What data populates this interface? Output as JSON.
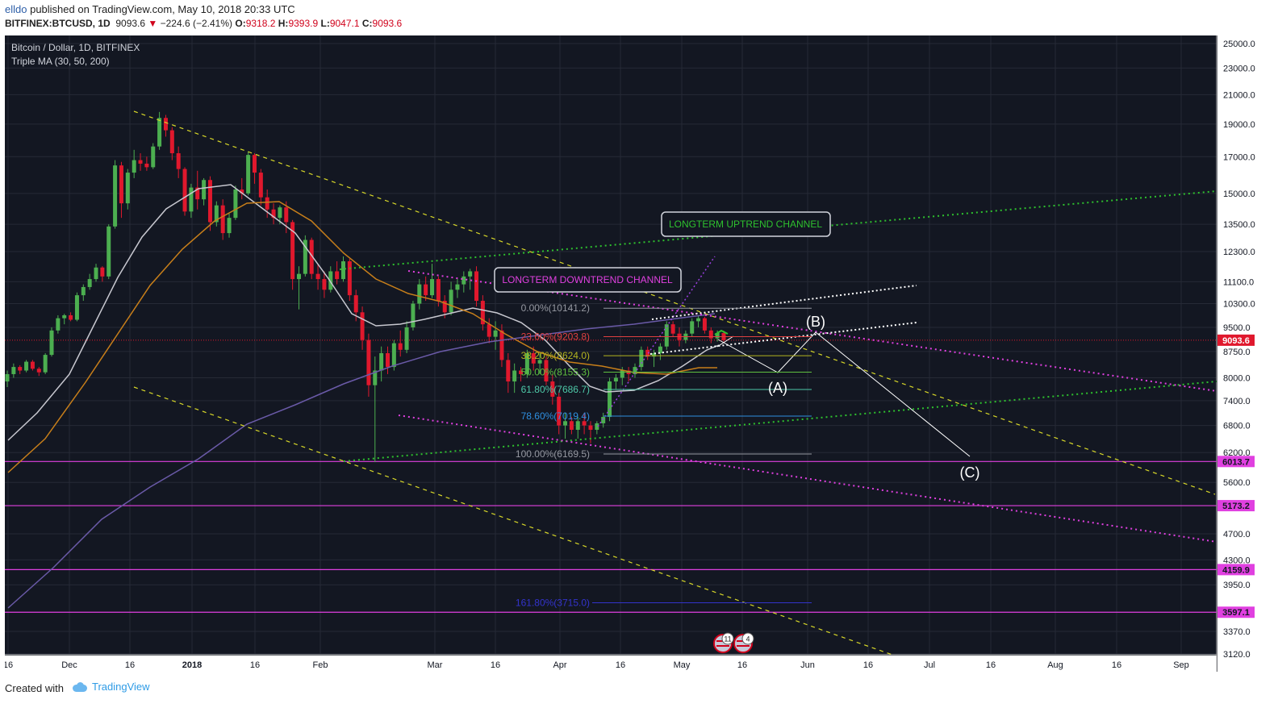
{
  "header": {
    "author": "elldo",
    "published_text": "published on TradingView.com, May 10, 2018 20:33 UTC",
    "symbol": "BITFINEX:BTCUSD, 1D",
    "last": "9093.6",
    "change": "−224.6 (−2.41%)",
    "o_label": "O:",
    "o_value": "9318.2",
    "h_label": "H:",
    "h_value": "9393.9",
    "l_label": "L:",
    "l_value": "9047.1",
    "c_label": "C:",
    "c_value": "9093.6"
  },
  "chart_title": "Bitcoin / Dollar, 1D, BITFINEX",
  "indicator": "Triple MA (30, 50, 200)",
  "footer": {
    "created": "Created with",
    "brand": "TradingView"
  },
  "colors": {
    "background": "#131722",
    "up": "#4caf50",
    "down": "#e0182d",
    "ma30": "#c8c8d0",
    "ma50": "#c87f1a",
    "ma200": "#6a5aa8",
    "magenta": "#e040e0",
    "green_dotted": "#2ec12e",
    "yellow_dashed": "#d8d828"
  },
  "chart_data": {
    "type": "candlestick",
    "ylim": [
      3120,
      25000
    ],
    "y_scale": "log",
    "y_ticks": [
      "25000.0",
      "23000.0",
      "21000.0",
      "19000.0",
      "17000.0",
      "15000.0",
      "13500.0",
      "12300.0",
      "11100.0",
      "10300.0",
      "9500.0",
      "8750.0",
      "8000.0",
      "7400.0",
      "6800.0",
      "6200.0",
      "5600.0",
      "4700.0",
      "4300.0",
      "3950.0",
      "3370.0",
      "3120.0"
    ],
    "x_ticks": [
      "16",
      "Dec",
      "16",
      "2018",
      "16",
      "Feb",
      "Mar",
      "16",
      "Apr",
      "16",
      "May",
      "16",
      "Jun",
      "16",
      "Jul",
      "16",
      "Aug",
      "16",
      "Sep"
    ],
    "last_price": "9093.6",
    "price_labels": [
      {
        "text": "6013.7",
        "value": 6013.7
      },
      {
        "text": "5173.2",
        "value": 5173.2
      },
      {
        "text": "4159.9",
        "value": 4159.9
      },
      {
        "text": "3597.1",
        "value": 3597.1
      }
    ],
    "fib_levels": [
      {
        "text": "0.00%(10141.2)",
        "value": 10141.2,
        "color": "#9598a1"
      },
      {
        "text": "23.60%(9203.8)",
        "value": 9203.8,
        "color": "#e04040"
      },
      {
        "text": "38.20%(8624.0)",
        "value": 8624.0,
        "color": "#b5b520"
      },
      {
        "text": "50.00%(8155.3)",
        "value": 8155.3,
        "color": "#5fbf3f"
      },
      {
        "text": "61.80%(7686.7)",
        "value": 7686.7,
        "color": "#4ec9a8"
      },
      {
        "text": "78.60%(7019.4)",
        "value": 7019.4,
        "color": "#2f8fe0"
      },
      {
        "text": "100.00%(6169.5)",
        "value": 6169.5,
        "color": "#9598a1"
      },
      {
        "text": "161.80%(3715.0)",
        "value": 3715.0,
        "color": "#3333cc"
      }
    ],
    "annotations": [
      {
        "text": "LONGTERM UPTREND CHANNEL",
        "color": "#2ec12e"
      },
      {
        "text": "LONGTERM DOWNTREND CHANNEL",
        "color": "#e040e0"
      },
      {
        "text": "(A)",
        "color": "#ffffff"
      },
      {
        "text": "(B)",
        "color": "#ffffff"
      },
      {
        "text": "(C)",
        "color": "#ffffff"
      }
    ],
    "event_badges": [
      "11",
      "4"
    ],
    "candles": [
      [
        7900,
        8200,
        7750,
        8100
      ],
      [
        8100,
        8400,
        8000,
        8300
      ],
      [
        8300,
        8350,
        8100,
        8200
      ],
      [
        8200,
        8500,
        8150,
        8450
      ],
      [
        8450,
        8500,
        8200,
        8250
      ],
      [
        8250,
        8300,
        8050,
        8150
      ],
      [
        8150,
        8700,
        8100,
        8650
      ],
      [
        8650,
        9500,
        8600,
        9400
      ],
      [
        9400,
        9900,
        9300,
        9800
      ],
      [
        9800,
        9950,
        9600,
        9900
      ],
      [
        9900,
        10000,
        9700,
        9750
      ],
      [
        9750,
        10700,
        9700,
        10600
      ],
      [
        10600,
        11000,
        10400,
        10900
      ],
      [
        10900,
        11400,
        10800,
        11200
      ],
      [
        11200,
        11800,
        11100,
        11650
      ],
      [
        11650,
        11700,
        11100,
        11300
      ],
      [
        11300,
        13500,
        11200,
        13400
      ],
      [
        13400,
        16800,
        13300,
        16500
      ],
      [
        16500,
        16700,
        13800,
        14500
      ],
      [
        14500,
        16300,
        14200,
        16100
      ],
      [
        16100,
        17400,
        15800,
        16800
      ],
      [
        16800,
        17200,
        16200,
        16600
      ],
      [
        16600,
        17000,
        16200,
        16400
      ],
      [
        16400,
        17800,
        16300,
        17600
      ],
      [
        17600,
        19800,
        17400,
        19400
      ],
      [
        19400,
        19600,
        18200,
        18600
      ],
      [
        18600,
        18800,
        16800,
        17200
      ],
      [
        17200,
        17600,
        15800,
        16300
      ],
      [
        16300,
        16400,
        13900,
        14100
      ],
      [
        14100,
        15500,
        13800,
        15300
      ],
      [
        15300,
        16200,
        14200,
        14700
      ],
      [
        14700,
        15800,
        14400,
        15700
      ],
      [
        15700,
        15900,
        13200,
        13600
      ],
      [
        13600,
        14600,
        13400,
        14400
      ],
      [
        14400,
        14700,
        12800,
        13100
      ],
      [
        13100,
        14000,
        12900,
        13800
      ],
      [
        13800,
        15400,
        13700,
        15200
      ],
      [
        15200,
        15800,
        14700,
        15000
      ],
      [
        15000,
        17300,
        14900,
        17100
      ],
      [
        17100,
        17200,
        15500,
        16100
      ],
      [
        16100,
        16300,
        14400,
        14800
      ],
      [
        14800,
        15200,
        13800,
        14200
      ],
      [
        14200,
        14500,
        13500,
        13800
      ],
      [
        13800,
        14400,
        13500,
        14300
      ],
      [
        14300,
        14600,
        13100,
        13600
      ],
      [
        13600,
        13700,
        10800,
        11200
      ],
      [
        11200,
        11700,
        10100,
        11400
      ],
      [
        11400,
        13000,
        11300,
        12800
      ],
      [
        12800,
        12900,
        11200,
        11400
      ],
      [
        11400,
        11800,
        10800,
        11200
      ],
      [
        11200,
        11500,
        10500,
        10800
      ],
      [
        10800,
        11700,
        10700,
        11500
      ],
      [
        11500,
        11900,
        11000,
        11200
      ],
      [
        11200,
        12100,
        11100,
        11900
      ],
      [
        11900,
        12000,
        10400,
        10600
      ],
      [
        10600,
        10800,
        9700,
        10000
      ],
      [
        10000,
        10200,
        8800,
        9100
      ],
      [
        9100,
        9300,
        7500,
        7800
      ],
      [
        7800,
        8600,
        6000,
        8200
      ],
      [
        8200,
        8900,
        7900,
        8700
      ],
      [
        8700,
        8900,
        8100,
        8300
      ],
      [
        8300,
        9100,
        8200,
        9000
      ],
      [
        9000,
        9400,
        8600,
        8800
      ],
      [
        8800,
        9700,
        8700,
        9500
      ],
      [
        9500,
        10400,
        9400,
        10300
      ],
      [
        10300,
        11200,
        10100,
        11000
      ],
      [
        11000,
        11300,
        10400,
        10600
      ],
      [
        10600,
        11800,
        10500,
        11200
      ],
      [
        11200,
        11300,
        10200,
        10400
      ],
      [
        10400,
        10600,
        9800,
        10000
      ],
      [
        10000,
        11100,
        9900,
        10800
      ],
      [
        10800,
        11200,
        10500,
        11000
      ],
      [
        11000,
        11500,
        10700,
        11300
      ],
      [
        11300,
        11600,
        10800,
        11500
      ],
      [
        11500,
        11700,
        10200,
        10400
      ],
      [
        10400,
        10600,
        9400,
        9600
      ],
      [
        9600,
        9800,
        9000,
        9200
      ],
      [
        9200,
        9700,
        8800,
        9400
      ],
      [
        9400,
        9600,
        8300,
        8500
      ],
      [
        8500,
        8700,
        7600,
        7900
      ],
      [
        7900,
        8400,
        7600,
        8200
      ],
      [
        8200,
        8300,
        7900,
        8100
      ],
      [
        8100,
        8800,
        8000,
        8700
      ],
      [
        8700,
        8900,
        8200,
        8400
      ],
      [
        8400,
        8700,
        8100,
        8500
      ],
      [
        8500,
        8600,
        7800,
        7900
      ],
      [
        7900,
        8100,
        7300,
        7500
      ],
      [
        7500,
        7600,
        6600,
        6800
      ],
      [
        6800,
        7100,
        6500,
        6900
      ],
      [
        6900,
        7000,
        6600,
        6700
      ],
      [
        6700,
        7000,
        6500,
        6900
      ],
      [
        6900,
        7100,
        6600,
        6800
      ],
      [
        6800,
        6900,
        6400,
        6700
      ],
      [
        6700,
        6900,
        6600,
        6850
      ],
      [
        6850,
        7100,
        6750,
        7000
      ],
      [
        7000,
        8000,
        6900,
        7900
      ],
      [
        7900,
        8100,
        7700,
        8000
      ],
      [
        8000,
        8300,
        7800,
        8200
      ],
      [
        8200,
        8300,
        7900,
        8100
      ],
      [
        8100,
        8400,
        8000,
        8300
      ],
      [
        8300,
        8900,
        8200,
        8800
      ],
      [
        8800,
        8900,
        8500,
        8600
      ],
      [
        8600,
        8800,
        8300,
        8700
      ],
      [
        8700,
        9000,
        8500,
        8900
      ],
      [
        8900,
        9700,
        8800,
        9600
      ],
      [
        9600,
        9700,
        9200,
        9300
      ],
      [
        9300,
        9500,
        8900,
        9100
      ],
      [
        9100,
        9400,
        9000,
        9300
      ],
      [
        9300,
        9800,
        9200,
        9700
      ],
      [
        9700,
        9900,
        9500,
        9800
      ],
      [
        9800,
        9850,
        9300,
        9400
      ],
      [
        9400,
        9500,
        9000,
        9150
      ],
      [
        9150,
        9400,
        9050,
        9318
      ],
      [
        9318,
        9394,
        9047,
        9094
      ]
    ]
  }
}
